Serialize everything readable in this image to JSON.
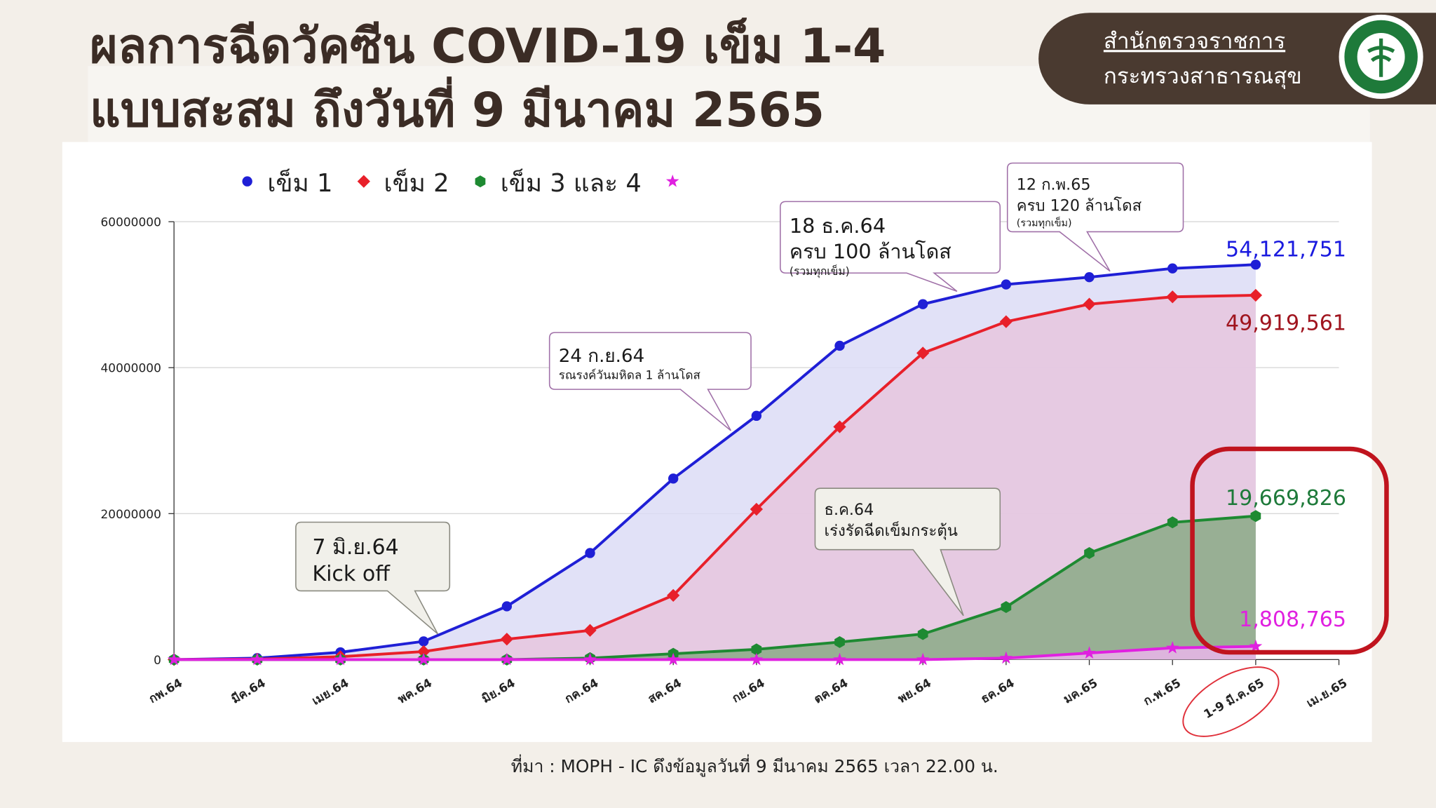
{
  "header": {
    "title_lines": [
      "ผลการฉีดวัคซีน COVID-19 เข็ม 1-4",
      "แบบสะสม ถึงวันที่ 9 มีนาคม 2565"
    ],
    "badge_lines": [
      "สำนักตรวจราชการ",
      "กระทรวงสาธารณสุข"
    ]
  },
  "source": "ที่มา : MOPH - IC ดึงข้อมูลวันที่ 9 มีนาคม 2565 เวลา 22.00 น.",
  "chart_data": {
    "type": "area",
    "categories": [
      "กพ.64",
      "มีค.64",
      "เมย.64",
      "พค.64",
      "มิย.64",
      "กค.64",
      "สค.64",
      "กย.64",
      "ตค.64",
      "พย.64",
      "ธค.64",
      "มค.65",
      "ก.พ.65",
      "1-9 มี.ค.65",
      "เม.ย.65"
    ],
    "ylim": [
      0,
      60000000
    ],
    "yticks": [
      0,
      20000000,
      40000000,
      60000000
    ],
    "grid": true,
    "series": [
      {
        "name": "เข็ม 1",
        "color": "#1f1fd6",
        "fill": "#dcdcf6",
        "marker": "circle",
        "label_color": "#1a1adf",
        "values": [
          0,
          200000,
          1000000,
          2500000,
          7300000,
          14600000,
          24800000,
          33400000,
          43000000,
          48700000,
          51400000,
          52400000,
          53600000,
          54121751,
          null
        ],
        "value_labels": [
          null,
          null,
          null,
          null,
          null,
          null,
          null,
          null,
          null,
          null,
          null,
          null,
          null,
          "54,121,751",
          null
        ]
      },
      {
        "name": "เข็ม 2",
        "color": "#e8202a",
        "fill": "#e6c6de",
        "marker": "diamond",
        "label_color": "#a0141e",
        "values": [
          0,
          50000,
          400000,
          1100000,
          2800000,
          4000000,
          8800000,
          20600000,
          31900000,
          42000000,
          46300000,
          48700000,
          49700000,
          49919561,
          null
        ],
        "value_labels": [
          null,
          null,
          null,
          null,
          null,
          null,
          null,
          null,
          null,
          null,
          null,
          null,
          null,
          "49,919,561",
          null
        ]
      },
      {
        "name": "เข็ม 3 และ 4",
        "color": "#1e8a32",
        "fill": "#8aaa86",
        "marker": "hexagon",
        "label_color": "#1e7a3a",
        "values": [
          0,
          0,
          0,
          0,
          0,
          200000,
          800000,
          1400000,
          2400000,
          3500000,
          7200000,
          14600000,
          18800000,
          19669826,
          null
        ],
        "value_labels": [
          null,
          null,
          null,
          null,
          null,
          null,
          null,
          null,
          null,
          null,
          null,
          null,
          null,
          "19,669,826",
          null
        ]
      },
      {
        "color": "#e020e0",
        "fill": "#e9b6ea",
        "marker": "star",
        "label_color": "#e020e0",
        "values": [
          0,
          0,
          0,
          0,
          0,
          0,
          0,
          0,
          0,
          0,
          200000,
          900000,
          1600000,
          1808765,
          null
        ],
        "value_labels": [
          null,
          null,
          null,
          null,
          null,
          null,
          null,
          null,
          null,
          null,
          null,
          null,
          null,
          "1,808,765",
          null
        ]
      }
    ],
    "annotations": [
      {
        "lines": [
          "7 มิ.ย.64",
          "Kick off"
        ]
      },
      {
        "lines": [
          "24 ก.ย.64",
          "รณรงค์วันมหิดล 1 ล้านโดส"
        ]
      },
      {
        "lines": [
          "18 ธ.ค.64",
          "ครบ 100 ล้านโดส",
          "(รวมทุกเข็ม)"
        ]
      },
      {
        "lines": [
          "12 ก.พ.65",
          "ครบ 120 ล้านโดส",
          "(รวมทุกเข็ม)"
        ]
      },
      {
        "lines": [
          "ธ.ค.64",
          "เร่งรัดฉีดเข็มกระตุ้น"
        ]
      }
    ]
  }
}
